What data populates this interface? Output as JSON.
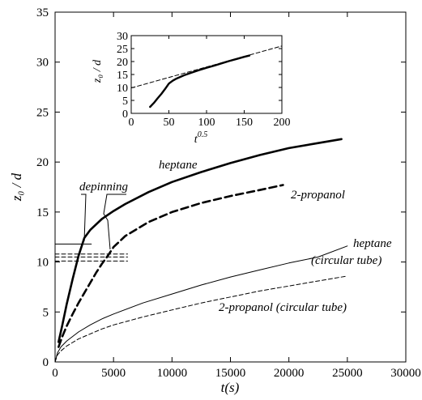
{
  "chart_data": [
    {
      "type": "line",
      "xlabel": "t(s)",
      "ylabel": "z₀ / d",
      "xlim": [
        0,
        30000
      ],
      "ylim": [
        0,
        35
      ],
      "xticks": [
        0,
        5000,
        10000,
        15000,
        20000,
        25000,
        30000
      ],
      "yticks": [
        0,
        5,
        10,
        15,
        20,
        25,
        30,
        35
      ],
      "grid": false,
      "series": [
        {
          "name": "heptane",
          "style": "thick-solid",
          "x": [
            300,
            600,
            1000,
            1500,
            2000,
            2500,
            3000,
            4000,
            5000,
            6000,
            8000,
            10000,
            12500,
            15000,
            17500,
            20000,
            22500,
            24500
          ],
          "y": [
            2.0,
            3.6,
            5.8,
            8.3,
            10.6,
            12.4,
            13.2,
            14.3,
            15.1,
            15.8,
            17.0,
            18.0,
            19.0,
            19.9,
            20.7,
            21.4,
            21.9,
            22.3
          ]
        },
        {
          "name": "2-propanol",
          "style": "thick-dashed",
          "x": [
            300,
            600,
            1000,
            1500,
            2000,
            2500,
            3000,
            3500,
            4000,
            4500,
            5000,
            6000,
            8000,
            10000,
            12500,
            15000,
            17500,
            19500
          ],
          "y": [
            1.5,
            2.5,
            3.6,
            4.8,
            5.9,
            6.9,
            7.9,
            8.9,
            9.8,
            10.6,
            11.5,
            12.6,
            14.0,
            15.0,
            15.9,
            16.6,
            17.2,
            17.7
          ]
        },
        {
          "name": "heptane (circular tube)",
          "style": "thin-solid",
          "x": [
            0,
            200,
            500,
            1000,
            2000,
            3000,
            4000,
            5000,
            7500,
            10000,
            12500,
            15000,
            17500,
            20000,
            22500,
            25000
          ],
          "y": [
            0.0,
            0.9,
            1.5,
            2.1,
            3.0,
            3.7,
            4.3,
            4.8,
            5.9,
            6.8,
            7.7,
            8.5,
            9.2,
            9.9,
            10.5,
            11.6
          ]
        },
        {
          "name": "2-propanol (circular tube)",
          "style": "thin-dashed",
          "x": [
            0,
            200,
            500,
            1000,
            2000,
            3000,
            4000,
            5000,
            7500,
            10000,
            12500,
            15000,
            17500,
            20000,
            22500,
            25000
          ],
          "y": [
            0.0,
            0.7,
            1.1,
            1.6,
            2.3,
            2.8,
            3.3,
            3.7,
            4.5,
            5.2,
            5.9,
            6.5,
            7.1,
            7.6,
            8.1,
            8.6
          ]
        }
      ],
      "reference_lines": [
        {
          "style": "thin-solid",
          "y": 11.8,
          "x": [
            0,
            3100
          ]
        },
        {
          "style": "thin-dashed",
          "y": 10.8,
          "x": [
            0,
            6200
          ]
        },
        {
          "style": "thin-dashed",
          "y": 10.5,
          "x": [
            0,
            6200
          ]
        },
        {
          "style": "thin-dashed",
          "y": 10.1,
          "x": [
            0,
            6200
          ]
        }
      ],
      "annotations": {
        "heptane": "heptane",
        "propanol": "2-propanol",
        "heptane_circ_1": "heptane",
        "heptane_circ_2": "(circular tube)",
        "propanol_circ": "2-propanol (circular tube)",
        "depinning": "depinning"
      },
      "inset": {
        "xlabel": "t",
        "xlabel_sup": "0.5",
        "ylabel": "z₀ / d",
        "xlim": [
          0,
          200
        ],
        "ylim": [
          0,
          30
        ],
        "xticks": [
          0,
          50,
          100,
          150,
          200
        ],
        "yticks": [
          0,
          5,
          10,
          15,
          20,
          25,
          30
        ],
        "series": [
          {
            "style": "thick-solid",
            "x": [
              25,
              30,
              35,
              40,
              45,
              50,
              55,
              60,
              70,
              80,
              90,
              100,
              110,
              120,
              130,
              140,
              150,
              157
            ],
            "y": [
              2.5,
              4.0,
              5.8,
              7.5,
              9.4,
              11.5,
              12.6,
              13.4,
              14.7,
              15.7,
              16.7,
              17.6,
              18.4,
              19.3,
              20.2,
              21.0,
              21.8,
              22.3
            ]
          },
          {
            "style": "thin-dashed",
            "x": [
              0,
              200
            ],
            "y": [
              9.8,
              26.0
            ]
          }
        ]
      }
    }
  ]
}
